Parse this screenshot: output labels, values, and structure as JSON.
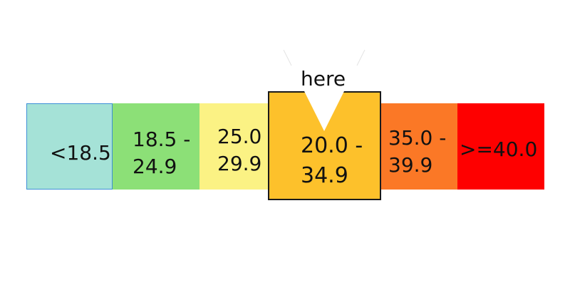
{
  "pointer": {
    "label": "here",
    "color": "#ffffff"
  },
  "segments": [
    {
      "id": "underweight",
      "label": "<18.5",
      "color": "#a5e2d7"
    },
    {
      "id": "normal",
      "label": "18.5 -\n24.9",
      "color": "#8ce077"
    },
    {
      "id": "overweight",
      "label": "25.0\n29.9",
      "color": "#fbf284"
    },
    {
      "id": "obese1",
      "label": "20.0 -\n34.9",
      "color": "#fdc12b",
      "highlighted": true
    },
    {
      "id": "obese2",
      "label": "35.0 -\n39.9",
      "color": "#fb7826"
    },
    {
      "id": "obese3",
      "label": ">=40.0",
      "color": "#fe0000"
    }
  ]
}
